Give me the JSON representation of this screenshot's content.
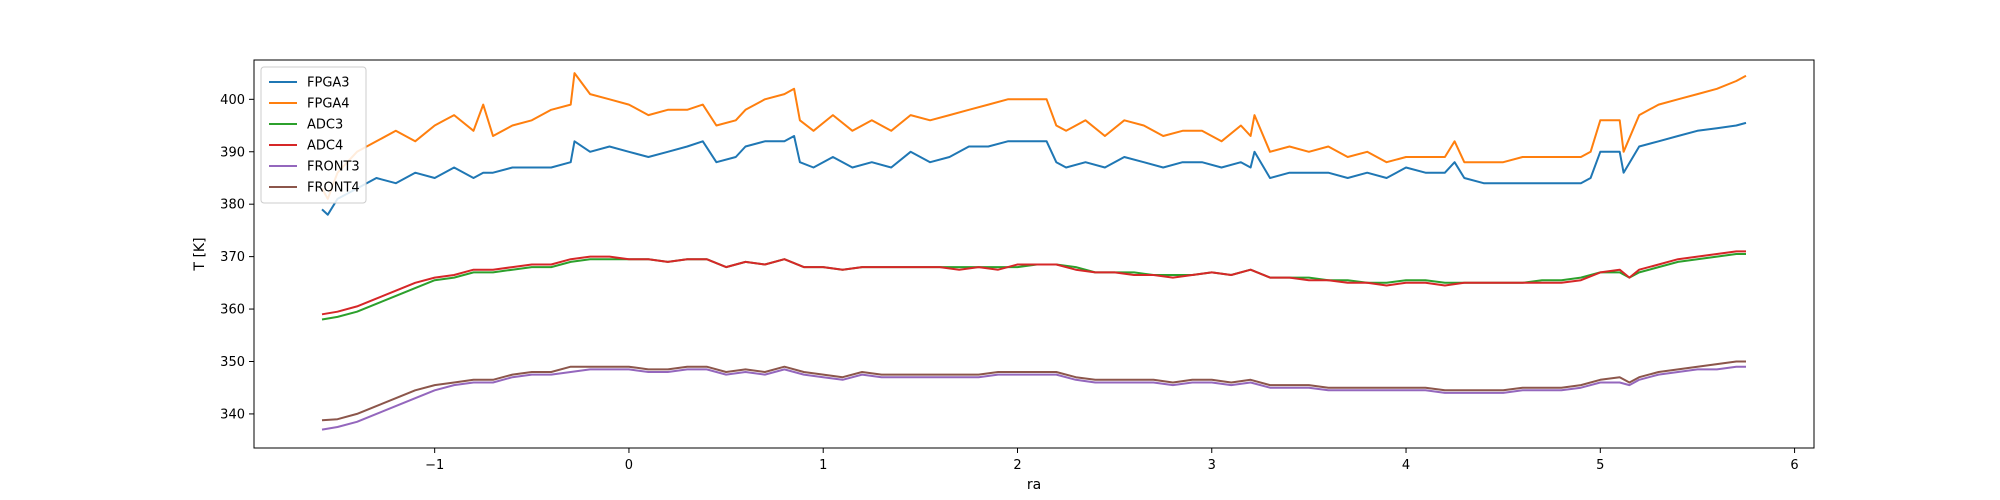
{
  "chart_data": {
    "type": "line",
    "xlabel": "ra",
    "ylabel": "T [K]",
    "xlim": [
      -1.93,
      6.1
    ],
    "ylim": [
      333.5,
      407.5
    ],
    "xticks": [
      -1,
      0,
      1,
      2,
      3,
      4,
      5,
      6
    ],
    "yticks": [
      340,
      350,
      360,
      370,
      380,
      390,
      400
    ],
    "legend_position": "upper-left",
    "series": [
      {
        "name": "FPGA3",
        "color": "#1f77b4",
        "x": [
          -1.58,
          -1.55,
          -1.5,
          -1.4,
          -1.3,
          -1.2,
          -1.1,
          -1.0,
          -0.95,
          -0.9,
          -0.8,
          -0.75,
          -0.7,
          -0.6,
          -0.5,
          -0.4,
          -0.3,
          -0.28,
          -0.2,
          -0.1,
          0.0,
          0.1,
          0.2,
          0.3,
          0.38,
          0.45,
          0.55,
          0.6,
          0.7,
          0.8,
          0.85,
          0.88,
          0.95,
          1.05,
          1.15,
          1.25,
          1.35,
          1.45,
          1.55,
          1.65,
          1.75,
          1.85,
          1.95,
          2.05,
          2.15,
          2.2,
          2.25,
          2.35,
          2.45,
          2.55,
          2.65,
          2.75,
          2.85,
          2.95,
          3.05,
          3.15,
          3.2,
          3.22,
          3.3,
          3.4,
          3.5,
          3.6,
          3.7,
          3.8,
          3.9,
          4.0,
          4.1,
          4.2,
          4.25,
          4.3,
          4.4,
          4.5,
          4.6,
          4.7,
          4.8,
          4.9,
          4.95,
          5.0,
          5.1,
          5.12,
          5.2,
          5.3,
          5.4,
          5.5,
          5.6,
          5.7,
          5.75
        ],
        "y": [
          379,
          378,
          381,
          383,
          385,
          384,
          386,
          385,
          386,
          387,
          385,
          386,
          386,
          387,
          387,
          387,
          388,
          392,
          390,
          391,
          390,
          389,
          390,
          391,
          392,
          388,
          389,
          391,
          392,
          392,
          393,
          388,
          387,
          389,
          387,
          388,
          387,
          390,
          388,
          389,
          391,
          391,
          392,
          392,
          392,
          388,
          387,
          388,
          387,
          389,
          388,
          387,
          388,
          388,
          387,
          388,
          387,
          390,
          385,
          386,
          386,
          386,
          385,
          386,
          385,
          387,
          386,
          386,
          388,
          385,
          384,
          384,
          384,
          384,
          384,
          384,
          385,
          390,
          390,
          386,
          391,
          392,
          393,
          394,
          394.5,
          395,
          395.5
        ]
      },
      {
        "name": "FPGA4",
        "color": "#ff7f0e",
        "x": [
          -1.58,
          -1.55,
          -1.5,
          -1.4,
          -1.3,
          -1.2,
          -1.1,
          -1.0,
          -0.95,
          -0.9,
          -0.8,
          -0.75,
          -0.7,
          -0.6,
          -0.5,
          -0.4,
          -0.3,
          -0.28,
          -0.2,
          -0.1,
          0.0,
          0.1,
          0.2,
          0.3,
          0.38,
          0.45,
          0.55,
          0.6,
          0.7,
          0.8,
          0.85,
          0.88,
          0.95,
          1.05,
          1.15,
          1.25,
          1.35,
          1.45,
          1.55,
          1.65,
          1.75,
          1.85,
          1.95,
          2.05,
          2.15,
          2.2,
          2.25,
          2.35,
          2.45,
          2.55,
          2.65,
          2.75,
          2.85,
          2.95,
          3.05,
          3.15,
          3.2,
          3.22,
          3.3,
          3.4,
          3.5,
          3.6,
          3.7,
          3.8,
          3.9,
          4.0,
          4.1,
          4.2,
          4.25,
          4.3,
          4.4,
          4.5,
          4.6,
          4.7,
          4.8,
          4.9,
          4.95,
          5.0,
          5.1,
          5.12,
          5.2,
          5.3,
          5.4,
          5.5,
          5.6,
          5.7,
          5.75
        ],
        "y": [
          383,
          381,
          386,
          390,
          392,
          394,
          392,
          395,
          396,
          397,
          394,
          399,
          393,
          395,
          396,
          398,
          399,
          405,
          401,
          400,
          399,
          397,
          398,
          398,
          399,
          395,
          396,
          398,
          400,
          401,
          402,
          396,
          394,
          397,
          394,
          396,
          394,
          397,
          396,
          397,
          398,
          399,
          400,
          400,
          400,
          395,
          394,
          396,
          393,
          396,
          395,
          393,
          394,
          394,
          392,
          395,
          393,
          397,
          390,
          391,
          390,
          391,
          389,
          390,
          388,
          389,
          389,
          389,
          392,
          388,
          388,
          388,
          389,
          389,
          389,
          389,
          390,
          396,
          396,
          390,
          397,
          399,
          400,
          401,
          402,
          403.5,
          404.5
        ]
      },
      {
        "name": "ADC3",
        "color": "#2ca02c",
        "x": [
          -1.58,
          -1.5,
          -1.4,
          -1.3,
          -1.2,
          -1.1,
          -1.0,
          -0.9,
          -0.8,
          -0.7,
          -0.6,
          -0.5,
          -0.4,
          -0.3,
          -0.2,
          -0.1,
          0.0,
          0.1,
          0.2,
          0.3,
          0.4,
          0.5,
          0.6,
          0.7,
          0.8,
          0.9,
          1.0,
          1.1,
          1.2,
          1.3,
          1.4,
          1.5,
          1.6,
          1.7,
          1.8,
          1.9,
          2.0,
          2.1,
          2.2,
          2.3,
          2.4,
          2.5,
          2.6,
          2.7,
          2.8,
          2.9,
          3.0,
          3.1,
          3.2,
          3.3,
          3.4,
          3.5,
          3.6,
          3.7,
          3.8,
          3.9,
          4.0,
          4.1,
          4.2,
          4.3,
          4.4,
          4.5,
          4.6,
          4.7,
          4.8,
          4.9,
          5.0,
          5.1,
          5.15,
          5.2,
          5.3,
          5.4,
          5.5,
          5.6,
          5.7,
          5.75
        ],
        "y": [
          358,
          358.5,
          359.5,
          361,
          362.5,
          364,
          365.5,
          366,
          367,
          367,
          367.5,
          368,
          368,
          369,
          369.5,
          369.5,
          369.5,
          369.5,
          369,
          369.5,
          369.5,
          368,
          369,
          368.5,
          369.5,
          368,
          368,
          367.5,
          368,
          368,
          368,
          368,
          368,
          368,
          368,
          368,
          368,
          368.5,
          368.5,
          368,
          367,
          367,
          367,
          366.5,
          366.5,
          366.5,
          367,
          366.5,
          367.5,
          366,
          366,
          366,
          365.5,
          365.5,
          365,
          365,
          365.5,
          365.5,
          365,
          365,
          365,
          365,
          365,
          365.5,
          365.5,
          366,
          367,
          367,
          366,
          367,
          368,
          369,
          369.5,
          370,
          370.5,
          370.5
        ]
      },
      {
        "name": "ADC4",
        "color": "#d62728",
        "x": [
          -1.58,
          -1.5,
          -1.4,
          -1.3,
          -1.2,
          -1.1,
          -1.0,
          -0.9,
          -0.8,
          -0.7,
          -0.6,
          -0.5,
          -0.4,
          -0.3,
          -0.2,
          -0.1,
          0.0,
          0.1,
          0.2,
          0.3,
          0.4,
          0.5,
          0.6,
          0.7,
          0.8,
          0.9,
          1.0,
          1.1,
          1.2,
          1.3,
          1.4,
          1.5,
          1.6,
          1.7,
          1.8,
          1.9,
          2.0,
          2.1,
          2.2,
          2.3,
          2.4,
          2.5,
          2.6,
          2.7,
          2.8,
          2.9,
          3.0,
          3.1,
          3.2,
          3.3,
          3.4,
          3.5,
          3.6,
          3.7,
          3.8,
          3.9,
          4.0,
          4.1,
          4.2,
          4.3,
          4.4,
          4.5,
          4.6,
          4.7,
          4.8,
          4.9,
          5.0,
          5.1,
          5.15,
          5.2,
          5.3,
          5.4,
          5.5,
          5.6,
          5.7,
          5.75
        ],
        "y": [
          359,
          359.5,
          360.5,
          362,
          363.5,
          365,
          366,
          366.5,
          367.5,
          367.5,
          368,
          368.5,
          368.5,
          369.5,
          370,
          370,
          369.5,
          369.5,
          369,
          369.5,
          369.5,
          368,
          369,
          368.5,
          369.5,
          368,
          368,
          367.5,
          368,
          368,
          368,
          368,
          368,
          367.5,
          368,
          367.5,
          368.5,
          368.5,
          368.5,
          367.5,
          367,
          367,
          366.5,
          366.5,
          366,
          366.5,
          367,
          366.5,
          367.5,
          366,
          366,
          365.5,
          365.5,
          365,
          365,
          364.5,
          365,
          365,
          364.5,
          365,
          365,
          365,
          365,
          365,
          365,
          365.5,
          367,
          367.5,
          366,
          367.5,
          368.5,
          369.5,
          370,
          370.5,
          371,
          371
        ]
      },
      {
        "name": "FRONT3",
        "color": "#9467bd",
        "x": [
          -1.58,
          -1.5,
          -1.4,
          -1.3,
          -1.2,
          -1.1,
          -1.0,
          -0.9,
          -0.8,
          -0.7,
          -0.6,
          -0.5,
          -0.4,
          -0.3,
          -0.2,
          -0.1,
          0.0,
          0.1,
          0.2,
          0.3,
          0.4,
          0.5,
          0.6,
          0.7,
          0.8,
          0.9,
          1.0,
          1.1,
          1.2,
          1.3,
          1.4,
          1.5,
          1.6,
          1.7,
          1.8,
          1.9,
          2.0,
          2.1,
          2.2,
          2.3,
          2.4,
          2.5,
          2.6,
          2.7,
          2.8,
          2.9,
          3.0,
          3.1,
          3.2,
          3.3,
          3.4,
          3.5,
          3.6,
          3.7,
          3.8,
          3.9,
          4.0,
          4.1,
          4.2,
          4.3,
          4.4,
          4.5,
          4.6,
          4.7,
          4.8,
          4.9,
          5.0,
          5.1,
          5.15,
          5.2,
          5.3,
          5.4,
          5.5,
          5.6,
          5.7,
          5.75
        ],
        "y": [
          337,
          337.5,
          338.5,
          340,
          341.5,
          343,
          344.5,
          345.5,
          346,
          346,
          347,
          347.5,
          347.5,
          348,
          348.5,
          348.5,
          348.5,
          348,
          348,
          348.5,
          348.5,
          347.5,
          348,
          347.5,
          348.5,
          347.5,
          347,
          346.5,
          347.5,
          347,
          347,
          347,
          347,
          347,
          347,
          347.5,
          347.5,
          347.5,
          347.5,
          346.5,
          346,
          346,
          346,
          346,
          345.5,
          346,
          346,
          345.5,
          346,
          345,
          345,
          345,
          344.5,
          344.5,
          344.5,
          344.5,
          344.5,
          344.5,
          344,
          344,
          344,
          344,
          344.5,
          344.5,
          344.5,
          345,
          346,
          346,
          345.5,
          346.5,
          347.5,
          348,
          348.5,
          348.5,
          349,
          349
        ]
      },
      {
        "name": "FRONT4",
        "color": "#8c564b",
        "x": [
          -1.58,
          -1.5,
          -1.4,
          -1.3,
          -1.2,
          -1.1,
          -1.0,
          -0.9,
          -0.8,
          -0.7,
          -0.6,
          -0.5,
          -0.4,
          -0.3,
          -0.2,
          -0.1,
          0.0,
          0.1,
          0.2,
          0.3,
          0.4,
          0.5,
          0.6,
          0.7,
          0.8,
          0.9,
          1.0,
          1.1,
          1.2,
          1.3,
          1.4,
          1.5,
          1.6,
          1.7,
          1.8,
          1.9,
          2.0,
          2.1,
          2.2,
          2.3,
          2.4,
          2.5,
          2.6,
          2.7,
          2.8,
          2.9,
          3.0,
          3.1,
          3.2,
          3.3,
          3.4,
          3.5,
          3.6,
          3.7,
          3.8,
          3.9,
          4.0,
          4.1,
          4.2,
          4.3,
          4.4,
          4.5,
          4.6,
          4.7,
          4.8,
          4.9,
          5.0,
          5.1,
          5.15,
          5.2,
          5.3,
          5.4,
          5.5,
          5.6,
          5.7,
          5.75
        ],
        "y": [
          338.8,
          339,
          340,
          341.5,
          343,
          344.5,
          345.5,
          346,
          346.5,
          346.5,
          347.5,
          348,
          348,
          349,
          349,
          349,
          349,
          348.5,
          348.5,
          349,
          349,
          348,
          348.5,
          348,
          349,
          348,
          347.5,
          347,
          348,
          347.5,
          347.5,
          347.5,
          347.5,
          347.5,
          347.5,
          348,
          348,
          348,
          348,
          347,
          346.5,
          346.5,
          346.5,
          346.5,
          346,
          346.5,
          346.5,
          346,
          346.5,
          345.5,
          345.5,
          345.5,
          345,
          345,
          345,
          345,
          345,
          345,
          344.5,
          344.5,
          344.5,
          344.5,
          345,
          345,
          345,
          345.5,
          346.5,
          347,
          346,
          347,
          348,
          348.5,
          349,
          349.5,
          350,
          350
        ]
      }
    ]
  }
}
